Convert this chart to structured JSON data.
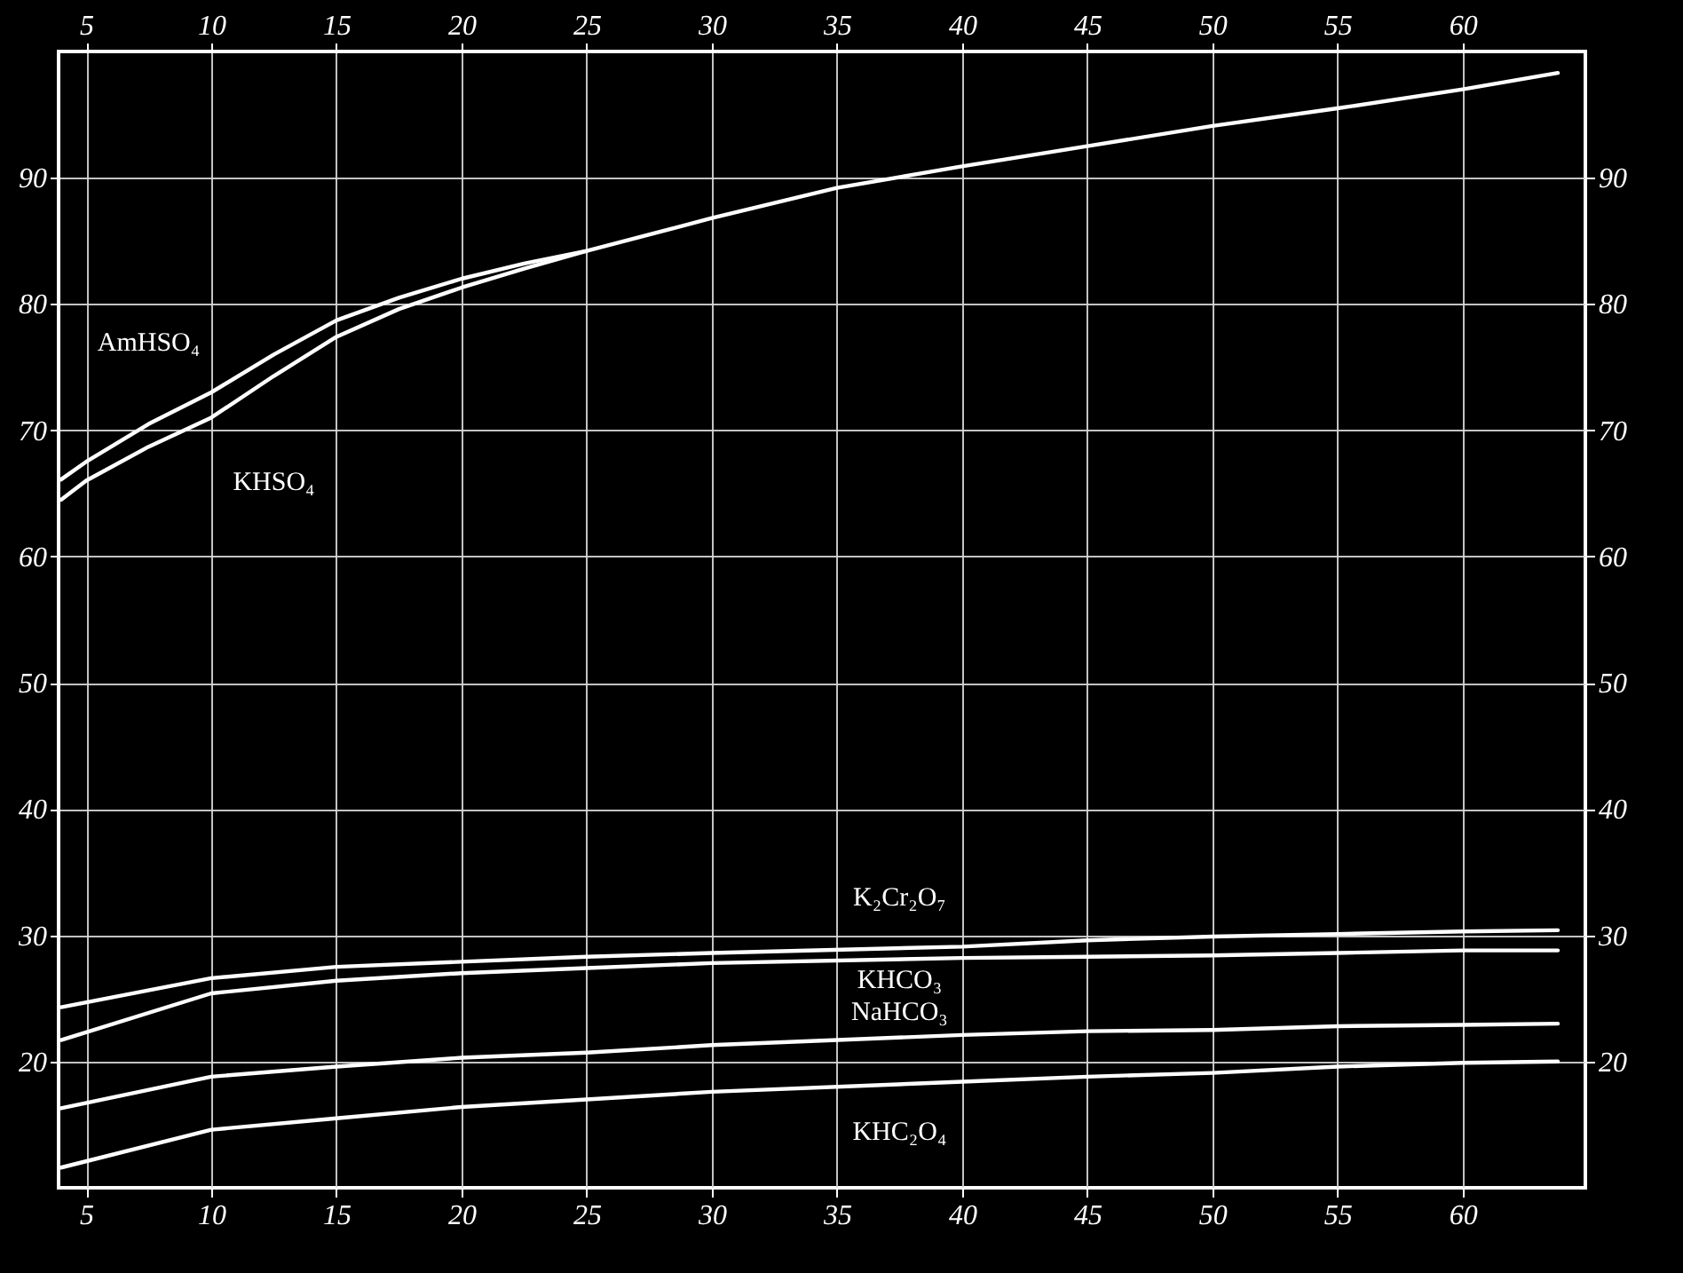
{
  "chart_data": {
    "type": "line",
    "series": [
      {
        "name": "AmHSO₄",
        "color": "#ffffff",
        "x": [
          4,
          5,
          7.5,
          10,
          12.5,
          15,
          17.5,
          20,
          22.5,
          25,
          30,
          35,
          40,
          45,
          50,
          55,
          60,
          63.8
        ],
        "values": [
          66.1,
          67.5,
          70.5,
          73.0,
          76.0,
          78.7,
          80.5,
          82.0,
          83.2,
          84.2,
          86.8,
          89.2,
          90.9,
          92.5,
          94.1,
          95.5,
          97.0,
          98.3
        ]
      },
      {
        "name": "KHSO₄",
        "color": "#ffffff",
        "x": [
          4,
          5,
          7.5,
          10,
          12.5,
          15,
          17.5,
          20,
          22.5,
          25
        ],
        "values": [
          64.5,
          66.0,
          68.7,
          71.0,
          74.3,
          77.4,
          79.6,
          81.3,
          82.8,
          84.2
        ]
      },
      {
        "name": "K₂Cr₂O₇",
        "color": "#ffffff",
        "x": [
          4,
          10,
          15,
          20,
          25,
          30,
          40,
          45,
          50,
          55,
          60,
          63.8
        ],
        "values": [
          24.3,
          26.6,
          27.5,
          27.9,
          28.3,
          28.6,
          29.1,
          29.6,
          29.9,
          30.1,
          30.3,
          30.4
        ]
      },
      {
        "name": "KHCO₃",
        "color": "#ffffff",
        "x": [
          4,
          10,
          15,
          20,
          25,
          30,
          40,
          45,
          50,
          55,
          60,
          63.8
        ],
        "values": [
          21.7,
          25.4,
          26.4,
          27.0,
          27.4,
          27.8,
          28.2,
          28.3,
          28.4,
          28.6,
          28.8,
          28.8
        ]
      },
      {
        "name": "NaHCO₃",
        "color": "#ffffff",
        "x": [
          4,
          10,
          15,
          20,
          25,
          30,
          40,
          45,
          50,
          55,
          60,
          63.8
        ],
        "values": [
          16.3,
          18.8,
          19.6,
          20.3,
          20.7,
          21.3,
          22.1,
          22.4,
          22.5,
          22.8,
          22.9,
          23.0
        ]
      },
      {
        "name": "KHC₂O₄",
        "color": "#ffffff",
        "x": [
          4,
          10,
          15,
          20,
          25,
          30,
          40,
          45,
          50,
          55,
          60,
          63.8
        ],
        "values": [
          11.6,
          14.6,
          15.5,
          16.4,
          17.0,
          17.6,
          18.4,
          18.8,
          19.1,
          19.6,
          19.9,
          20.0
        ]
      }
    ],
    "xlim": [
      3.9,
      64.9
    ],
    "xticks": [
      5,
      10,
      15,
      20,
      25,
      30,
      35,
      40,
      45,
      50,
      55,
      60
    ],
    "x2lim": [
      3.9,
      64.9
    ],
    "x2ticks": [
      5,
      10,
      15,
      20,
      25,
      30,
      35,
      40,
      45,
      50,
      55,
      60
    ],
    "ylim": [
      10,
      100
    ],
    "yticks": [
      20,
      30,
      40,
      50,
      60,
      70,
      80,
      90
    ],
    "y2lim": [
      10,
      100
    ],
    "y2ticks": [
      20,
      30,
      40,
      50,
      60,
      70,
      80,
      90
    ],
    "grid": true
  }
}
